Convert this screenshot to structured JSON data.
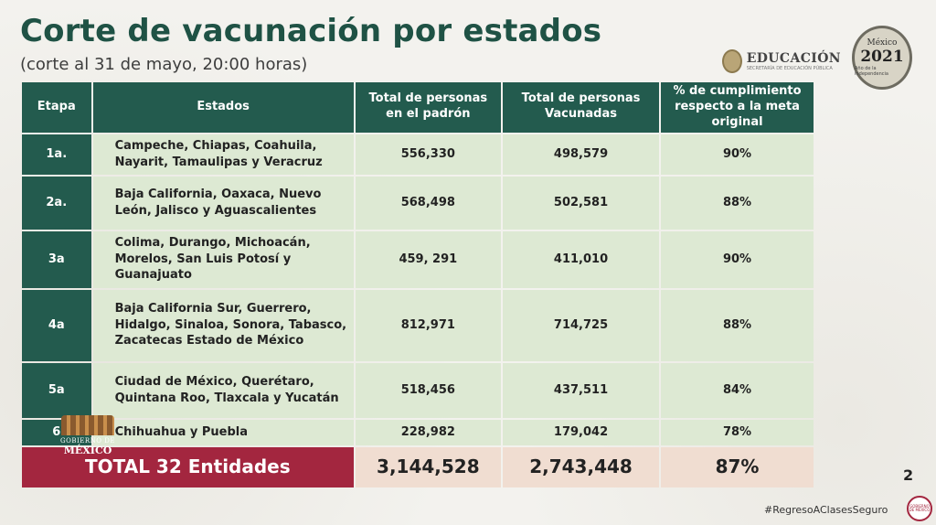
{
  "header": {
    "title": "Corte de vacunación por estados",
    "subtitle": "(corte al 31 de mayo, 20:00 horas)"
  },
  "logos": {
    "education": "EDUCACIÓN",
    "education_sub": "SECRETARÍA DE EDUCACIÓN PÚBLICA",
    "year_top": "México",
    "year": "2021",
    "year_sub": "Año de la Independencia",
    "gobierno_line1": "GOBIERNO DE",
    "gobierno_line2": "MÉXICO"
  },
  "table": {
    "headers": [
      "Etapa",
      "Estados",
      "Total de personas en el padrón",
      "Total de personas Vacunadas",
      "% de cumplimiento respecto a la meta original"
    ],
    "rows": [
      {
        "etapa": "1a.",
        "estados": "Campeche, Chiapas, Coahuila, Nayarit, Tamaulipas y Veracruz",
        "padron": "556,330",
        "vacunadas": "498,579",
        "pct": "90%"
      },
      {
        "etapa": "2a.",
        "estados": "Baja California, Oaxaca, Nuevo León, Jalisco y Aguascalientes",
        "padron": "568,498",
        "vacunadas": "502,581",
        "pct": "88%"
      },
      {
        "etapa": "3a",
        "estados": "Colima, Durango, Michoacán, Morelos, San Luis Potosí y Guanajuato",
        "padron": "459, 291",
        "vacunadas": "411,010",
        "pct": "90%"
      },
      {
        "etapa": "4a",
        "estados": "Baja California Sur, Guerrero, Hidalgo, Sinaloa, Sonora, Tabasco, Zacatecas Estado de México",
        "padron": "812,971",
        "vacunadas": "714,725",
        "pct": "88%"
      },
      {
        "etapa": "5a",
        "estados": "Ciudad de México, Querétaro, Quintana Roo, Tlaxcala y Yucatán",
        "padron": "518,456",
        "vacunadas": "437,511",
        "pct": "84%"
      },
      {
        "etapa": "6",
        "estados": "Chihuahua y Puebla",
        "padron": "228,982",
        "vacunadas": "179,042",
        "pct": "78%"
      }
    ],
    "total": {
      "label": "TOTAL 32 Entidades",
      "padron": "3,144,528",
      "vacunadas": "2,743,448",
      "pct": "87%"
    }
  },
  "footer": {
    "page_number": "2",
    "hashtag": "#RegresoAClasesSeguro",
    "hashtag_logo": "GOBIERNO DE MÉXICO"
  },
  "colors": {
    "header_green": "#235b4e",
    "row_green": "#dde9d3",
    "total_red": "#a3263f",
    "total_cream": "#f0ddd1",
    "title_green": "#1f5245"
  }
}
